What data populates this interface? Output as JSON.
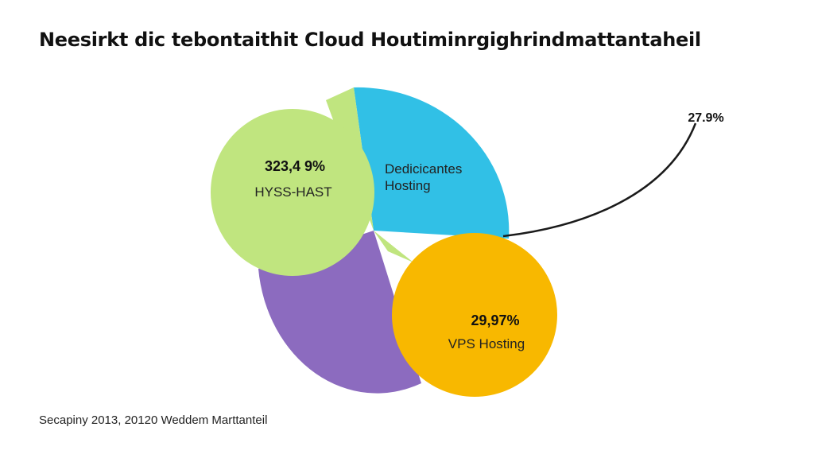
{
  "chart_data": {
    "type": "pie",
    "title": "Neesirkt dic tebontaithit Cloud Houtiminrgighrindmattantaheil",
    "source": "Secapiny 2013, 20120 Weddem Marttanteil",
    "slices": [
      {
        "label": "HYSS-HAST",
        "value_label": "323,4 9%",
        "color": "#c0e57f"
      },
      {
        "label": "Dedicicantes Hosting",
        "value_label": "",
        "color": "#31c0e6"
      },
      {
        "label": "VPS Hosting",
        "value_label": "29,97%",
        "color": "#f8b800"
      },
      {
        "label": "",
        "value_label": "",
        "color": "#8c6bbf"
      }
    ],
    "callout": {
      "text": "27.9%",
      "points_to": "Dedicicantes Hosting"
    }
  }
}
